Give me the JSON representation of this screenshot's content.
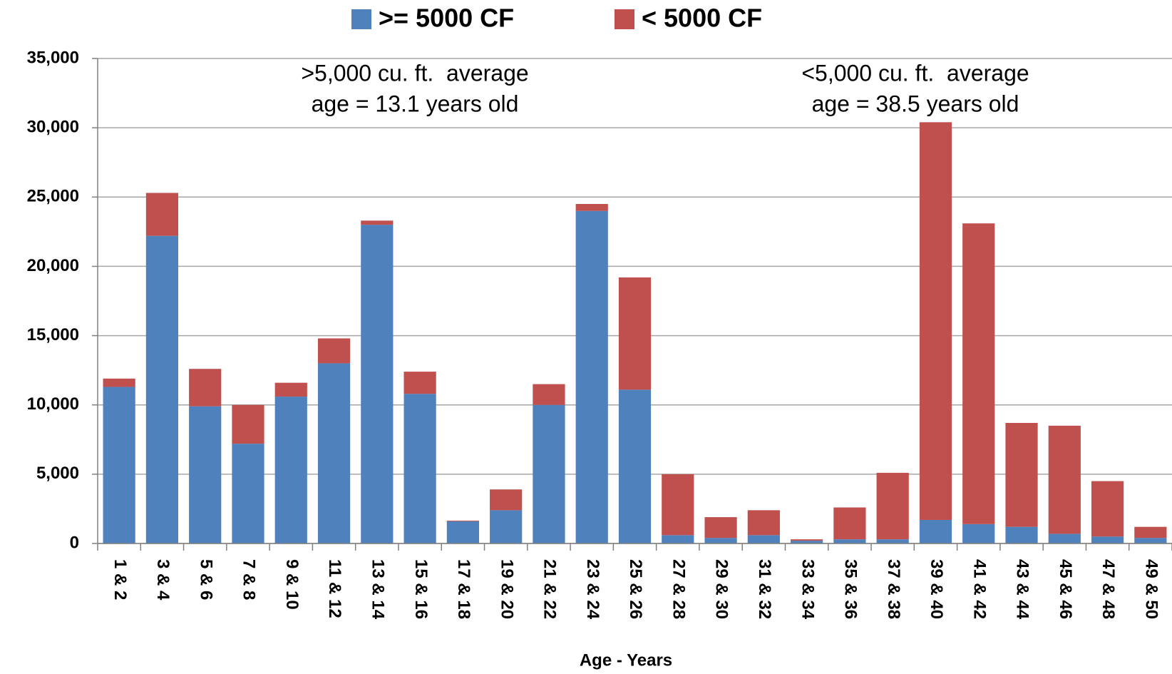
{
  "chart_data": {
    "type": "stacked_bar",
    "xlabel": "Age - Years",
    "categories": [
      "1 & 2",
      "3 & 4",
      "5 & 6",
      "7 & 8",
      "9 & 10",
      "11 & 12",
      "13 & 14",
      "15 & 16",
      "17 & 18",
      "19 & 20",
      "21 & 22",
      "23 & 24",
      "25 & 26",
      "27 & 28",
      "29 & 30",
      "31 & 32",
      "33 & 34",
      "35 & 36",
      "37 & 38",
      "39 & 40",
      "41 & 42",
      "43 & 44",
      "45 & 46",
      "47 & 48",
      "49 & 50"
    ],
    "series": [
      {
        "name": ">= 5000 CF",
        "color": "#4f81bd",
        "values": [
          11300,
          22200,
          9900,
          7200,
          10600,
          13000,
          23000,
          10800,
          1600,
          2400,
          10000,
          24000,
          11100,
          600,
          400,
          600,
          200,
          300,
          300,
          1700,
          1400,
          1200,
          700,
          500,
          400
        ]
      },
      {
        "name": "< 5000 CF",
        "color": "#c0504d",
        "values": [
          600,
          3100,
          2700,
          2800,
          1000,
          1800,
          300,
          1600,
          50,
          1500,
          1500,
          500,
          8100,
          4400,
          1500,
          1800,
          100,
          2300,
          4800,
          28700,
          21700,
          7500,
          7800,
          4000,
          800
        ]
      }
    ],
    "ylim": [
      0,
      35000
    ],
    "yticks": [
      0,
      {
        "value": 5000,
        "label": "5,000"
      },
      {
        "value": 10000,
        "label": "10,000"
      },
      {
        "value": 15000,
        "label": "15,000"
      },
      {
        "value": 20000,
        "label": "20,000"
      },
      {
        "value": 25000,
        "label": "25,000"
      },
      {
        "value": 30000,
        "label": "30,000"
      },
      {
        "value": 35000,
        "label": "35,000"
      }
    ],
    "grid": true,
    "legend": "top",
    "annotations": [
      {
        "lines": [
          ">5,000 cu. ft.  average",
          "age = 13.1 years old"
        ]
      },
      {
        "lines": [
          "<5,000 cu. ft.  average",
          "age = 38.5 years old"
        ]
      }
    ]
  }
}
